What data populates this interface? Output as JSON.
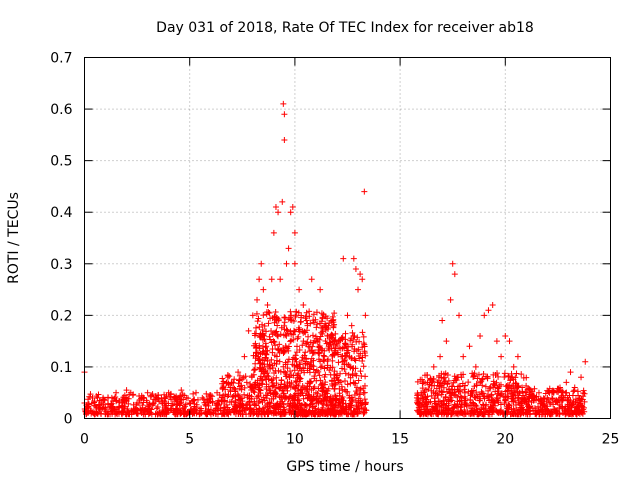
{
  "chart_data": {
    "type": "scatter",
    "title": "Day 031 of 2018, Rate Of TEC Index for receiver ab18",
    "xlabel": "GPS time / hours",
    "ylabel": "ROTI / TECUs",
    "xlim": [
      0,
      25
    ],
    "ylim": [
      0,
      0.7
    ],
    "xticks": [
      0,
      5,
      10,
      15,
      20,
      25
    ],
    "yticks": [
      0,
      0.1,
      0.2,
      0.3,
      0.4,
      0.5,
      0.6,
      0.7
    ],
    "xtick_labels": [
      "0",
      "5",
      "10",
      "15",
      "20",
      "25"
    ],
    "ytick_labels": [
      "0",
      "0.1",
      "0.2",
      "0.3",
      "0.4",
      "0.5",
      "0.6",
      "0.7"
    ],
    "grid": true,
    "marker": "+",
    "color": "#ff0000",
    "series": [
      {
        "name": "ROTI",
        "points": [
          [
            0.0,
            0.09
          ],
          [
            0.0,
            0.03
          ],
          [
            0.2,
            0.02
          ],
          [
            0.5,
            0.025
          ],
          [
            0.8,
            0.03
          ],
          [
            1.0,
            0.02
          ],
          [
            1.3,
            0.04
          ],
          [
            1.5,
            0.05
          ],
          [
            1.8,
            0.03
          ],
          [
            2.0,
            0.055
          ],
          [
            2.2,
            0.05
          ],
          [
            2.5,
            0.03
          ],
          [
            2.8,
            0.04
          ],
          [
            3.0,
            0.05
          ],
          [
            3.3,
            0.03
          ],
          [
            3.5,
            0.045
          ],
          [
            3.8,
            0.03
          ],
          [
            4.0,
            0.05
          ],
          [
            4.3,
            0.04
          ],
          [
            4.6,
            0.055
          ],
          [
            5.0,
            0.03
          ],
          [
            5.3,
            0.05
          ],
          [
            5.6,
            0.04
          ],
          [
            6.0,
            0.045
          ],
          [
            6.3,
            0.05
          ],
          [
            6.6,
            0.06
          ],
          [
            7.0,
            0.07
          ],
          [
            7.3,
            0.09
          ],
          [
            7.6,
            0.12
          ],
          [
            7.8,
            0.17
          ],
          [
            8.0,
            0.2
          ],
          [
            8.2,
            0.23
          ],
          [
            8.3,
            0.27
          ],
          [
            8.4,
            0.3
          ],
          [
            8.5,
            0.25
          ],
          [
            8.7,
            0.22
          ],
          [
            8.9,
            0.27
          ],
          [
            9.0,
            0.36
          ],
          [
            9.1,
            0.41
          ],
          [
            9.2,
            0.4
          ],
          [
            9.3,
            0.27
          ],
          [
            9.4,
            0.42
          ],
          [
            9.45,
            0.61
          ],
          [
            9.5,
            0.59
          ],
          [
            9.5,
            0.54
          ],
          [
            9.6,
            0.3
          ],
          [
            9.7,
            0.33
          ],
          [
            9.8,
            0.4
          ],
          [
            9.9,
            0.41
          ],
          [
            10.0,
            0.36
          ],
          [
            10.0,
            0.3
          ],
          [
            10.2,
            0.25
          ],
          [
            10.4,
            0.22
          ],
          [
            10.6,
            0.18
          ],
          [
            10.8,
            0.27
          ],
          [
            11.0,
            0.15
          ],
          [
            11.2,
            0.25
          ],
          [
            11.4,
            0.12
          ],
          [
            11.6,
            0.18
          ],
          [
            11.8,
            0.19
          ],
          [
            12.0,
            0.08
          ],
          [
            12.2,
            0.12
          ],
          [
            12.3,
            0.31
          ],
          [
            12.5,
            0.2
          ],
          [
            12.7,
            0.18
          ],
          [
            12.8,
            0.31
          ],
          [
            12.9,
            0.29
          ],
          [
            13.0,
            0.25
          ],
          [
            13.1,
            0.28
          ],
          [
            13.2,
            0.27
          ],
          [
            13.3,
            0.44
          ],
          [
            13.35,
            0.2
          ],
          [
            15.8,
            0.04
          ],
          [
            16.0,
            0.05
          ],
          [
            16.3,
            0.07
          ],
          [
            16.6,
            0.1
          ],
          [
            16.9,
            0.12
          ],
          [
            17.0,
            0.19
          ],
          [
            17.2,
            0.15
          ],
          [
            17.4,
            0.23
          ],
          [
            17.5,
            0.3
          ],
          [
            17.6,
            0.28
          ],
          [
            17.8,
            0.2
          ],
          [
            18.0,
            0.12
          ],
          [
            18.3,
            0.14
          ],
          [
            18.6,
            0.1
          ],
          [
            18.8,
            0.16
          ],
          [
            19.0,
            0.2
          ],
          [
            19.2,
            0.21
          ],
          [
            19.4,
            0.22
          ],
          [
            19.6,
            0.15
          ],
          [
            19.8,
            0.12
          ],
          [
            20.0,
            0.16
          ],
          [
            20.2,
            0.15
          ],
          [
            20.4,
            0.1
          ],
          [
            20.6,
            0.12
          ],
          [
            20.8,
            0.06
          ],
          [
            21.0,
            0.05
          ],
          [
            21.3,
            0.04
          ],
          [
            21.6,
            0.05
          ],
          [
            22.0,
            0.04
          ],
          [
            22.3,
            0.05
          ],
          [
            22.6,
            0.06
          ],
          [
            22.9,
            0.07
          ],
          [
            23.1,
            0.09
          ],
          [
            23.3,
            0.06
          ],
          [
            23.6,
            0.08
          ],
          [
            23.8,
            0.11
          ]
        ],
        "dense_segments": [
          {
            "x_range": [
              0.0,
              6.5
            ],
            "y_range": [
              0.0,
              0.04
            ],
            "count": 420
          },
          {
            "x_range": [
              6.5,
              8.0
            ],
            "y_range": [
              0.0,
              0.08
            ],
            "count": 160
          },
          {
            "x_range": [
              8.0,
              12.0
            ],
            "y_range": [
              0.0,
              0.2
            ],
            "count": 900
          },
          {
            "x_range": [
              12.0,
              13.4
            ],
            "y_range": [
              0.0,
              0.16
            ],
            "count": 220
          },
          {
            "x_range": [
              15.8,
              21.0
            ],
            "y_range": [
              0.0,
              0.08
            ],
            "count": 600
          },
          {
            "x_range": [
              21.0,
              23.8
            ],
            "y_range": [
              0.0,
              0.05
            ],
            "count": 260
          }
        ]
      }
    ]
  }
}
